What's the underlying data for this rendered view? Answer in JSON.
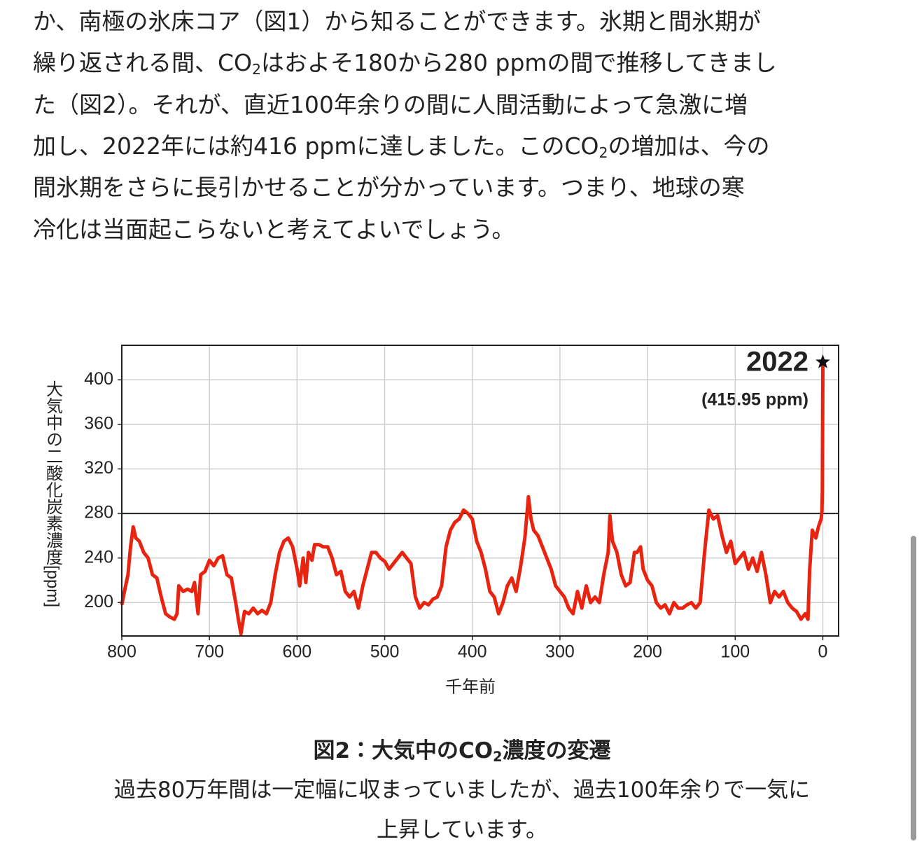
{
  "body": {
    "lines": [
      [
        "か、南極の氷床コア（図1）から知ることができます。氷期と間氷期が"
      ],
      [
        "繰り返される間、CO",
        {
          "sub": "2"
        },
        "はおよそ180から280 ppmの間で推移してきまし"
      ],
      [
        "た（図2）。それが、直近100年余りの間に人間活動によって急激に増"
      ],
      [
        "加し、2022年には約416 ppmに達しました。このCO",
        {
          "sub": "2"
        },
        "の増加は、今の"
      ],
      [
        "間氷期をさらに長引かせることが分かっています。つまり、地球の寒"
      ],
      [
        "冷化は当面起こらないと考えてよいでしょう。"
      ]
    ]
  },
  "chart_data": {
    "type": "line",
    "ylabel": "大気中の二酸化炭素濃度[ppm]",
    "xlabel": "千年前",
    "xlim": [
      800,
      -18
    ],
    "ylim": [
      170,
      431
    ],
    "xticks": [
      800,
      700,
      600,
      500,
      400,
      300,
      200,
      100,
      0
    ],
    "yticks": [
      200,
      240,
      280,
      320,
      360,
      400
    ],
    "grid": true,
    "hline": 280,
    "annotations": [
      {
        "text": "2022"
      },
      {
        "text": "(415.95 ppm)"
      }
    ],
    "series": [
      {
        "color": "#e8230f",
        "x": [
          800,
          797,
          793,
          790,
          787,
          784,
          780,
          775,
          770,
          765,
          760,
          755,
          750,
          745,
          740,
          737,
          735,
          730,
          725,
          720,
          717,
          713,
          710,
          705,
          700,
          695,
          690,
          685,
          680,
          675,
          670,
          667,
          664,
          660,
          655,
          650,
          645,
          640,
          635,
          630,
          625,
          620,
          615,
          610,
          605,
          600,
          597,
          593,
          590,
          587,
          583,
          580,
          575,
          570,
          565,
          560,
          555,
          550,
          545,
          540,
          535,
          530,
          525,
          520,
          515,
          510,
          505,
          500,
          495,
          490,
          485,
          480,
          475,
          470,
          465,
          460,
          455,
          450,
          445,
          440,
          435,
          430,
          425,
          420,
          415,
          410,
          405,
          400,
          395,
          390,
          385,
          380,
          375,
          370,
          365,
          360,
          355,
          350,
          345,
          340,
          336,
          333,
          330,
          325,
          320,
          315,
          310,
          305,
          300,
          295,
          290,
          285,
          280,
          275,
          270,
          265,
          260,
          255,
          250,
          245,
          243,
          240,
          235,
          230,
          225,
          220,
          215,
          212,
          208,
          205,
          200,
          195,
          190,
          185,
          180,
          175,
          170,
          165,
          160,
          155,
          150,
          145,
          140,
          135,
          130,
          125,
          120,
          115,
          110,
          105,
          100,
          95,
          90,
          85,
          80,
          75,
          70,
          65,
          60,
          55,
          50,
          45,
          40,
          35,
          30,
          25,
          20,
          17,
          15,
          12,
          8,
          5,
          2,
          1,
          0.5,
          0
        ],
        "values": [
          198,
          210,
          225,
          250,
          268,
          258,
          255,
          245,
          240,
          225,
          222,
          205,
          190,
          187,
          185,
          190,
          215,
          210,
          212,
          210,
          218,
          190,
          225,
          228,
          238,
          233,
          240,
          242,
          225,
          222,
          200,
          185,
          172,
          192,
          190,
          195,
          190,
          193,
          190,
          200,
          225,
          245,
          255,
          258,
          250,
          230,
          215,
          240,
          218,
          245,
          238,
          252,
          252,
          250,
          250,
          240,
          225,
          228,
          210,
          205,
          210,
          195,
          215,
          230,
          245,
          245,
          240,
          237,
          230,
          235,
          240,
          245,
          240,
          235,
          205,
          195,
          200,
          198,
          203,
          205,
          215,
          250,
          265,
          272,
          275,
          283,
          280,
          275,
          255,
          245,
          230,
          210,
          205,
          190,
          200,
          215,
          222,
          210,
          232,
          258,
          295,
          275,
          265,
          260,
          250,
          240,
          230,
          215,
          210,
          205,
          195,
          190,
          210,
          195,
          215,
          200,
          205,
          200,
          225,
          245,
          278,
          255,
          245,
          225,
          215,
          218,
          245,
          245,
          250,
          230,
          220,
          215,
          200,
          195,
          198,
          190,
          200,
          195,
          195,
          198,
          200,
          195,
          200,
          245,
          283,
          275,
          278,
          260,
          245,
          255,
          235,
          240,
          245,
          230,
          240,
          228,
          245,
          225,
          200,
          210,
          205,
          210,
          200,
          195,
          192,
          185,
          190,
          185,
          230,
          265,
          258,
          268,
          275,
          282,
          300,
          415.95
        ]
      }
    ]
  },
  "caption": {
    "title": [
      "図2：大気中のCO",
      {
        "sub": "2"
      },
      "濃度の変遷"
    ],
    "lines": [
      "過去80万年間は一定幅に収まっていましたが、過去100年余りで一気に",
      "上昇しています。"
    ]
  }
}
